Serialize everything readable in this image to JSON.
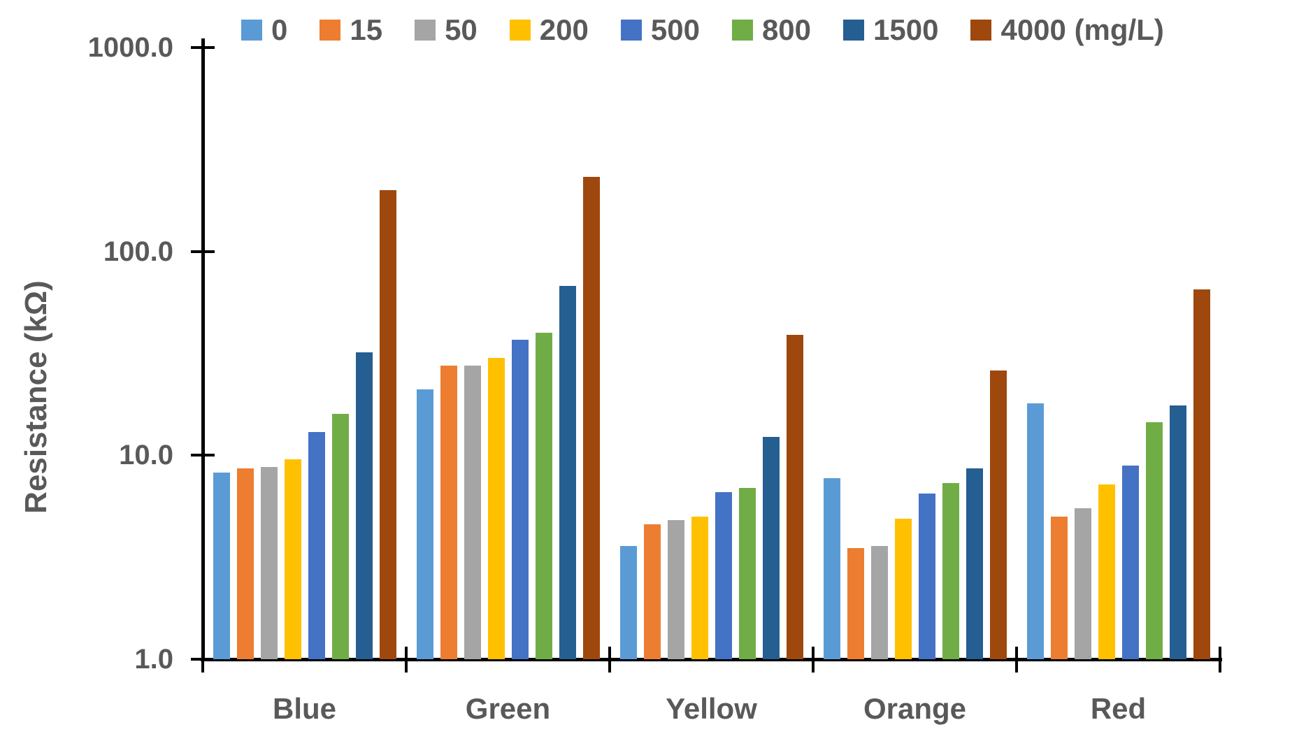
{
  "colors": {
    "text": "#595959",
    "axis": "#000000",
    "background": "#FFFFFF"
  },
  "chart_data": {
    "type": "bar",
    "title": "",
    "xlabel": "",
    "ylabel": "Resistance (kΩ)",
    "y_scale": "log",
    "ylim": [
      1,
      1000
    ],
    "grid": false,
    "legend_position": "top",
    "ytick_labels": [
      "1000.0",
      "100.0",
      "10.0",
      "1.0"
    ],
    "ytick_values": [
      1000,
      100,
      10,
      1
    ],
    "categories": [
      "Blue",
      "Green",
      "Yellow",
      "Orange",
      "Red"
    ],
    "series": [
      {
        "name": "0",
        "color": "#5B9BD5",
        "texture": "dots",
        "values": [
          8.2,
          21.0,
          3.6,
          7.7,
          18.0
        ]
      },
      {
        "name": "15",
        "color": "#ED7D31",
        "texture": "none",
        "values": [
          8.6,
          27.5,
          4.6,
          3.5,
          5.0
        ]
      },
      {
        "name": "50",
        "color": "#A5A5A5",
        "texture": "hatch",
        "values": [
          8.8,
          27.5,
          4.8,
          3.6,
          5.5
        ]
      },
      {
        "name": "200",
        "color": "#FFC000",
        "texture": "none",
        "values": [
          9.6,
          30.0,
          5.0,
          4.9,
          7.2
        ]
      },
      {
        "name": "500",
        "color": "#4472C4",
        "texture": "none",
        "values": [
          13.0,
          37.0,
          6.6,
          6.5,
          8.9
        ]
      },
      {
        "name": "800",
        "color": "#70AD47",
        "texture": "none",
        "values": [
          16.0,
          40.0,
          6.9,
          7.3,
          14.5
        ]
      },
      {
        "name": "1500",
        "color": "#255E91",
        "texture": "none",
        "values": [
          32.0,
          68.0,
          12.3,
          8.6,
          17.5
        ]
      },
      {
        "name": "4000 (mg/L)",
        "color": "#9E480E",
        "texture": "none",
        "values": [
          200.0,
          232.0,
          39.0,
          26.0,
          65.0
        ]
      }
    ]
  }
}
